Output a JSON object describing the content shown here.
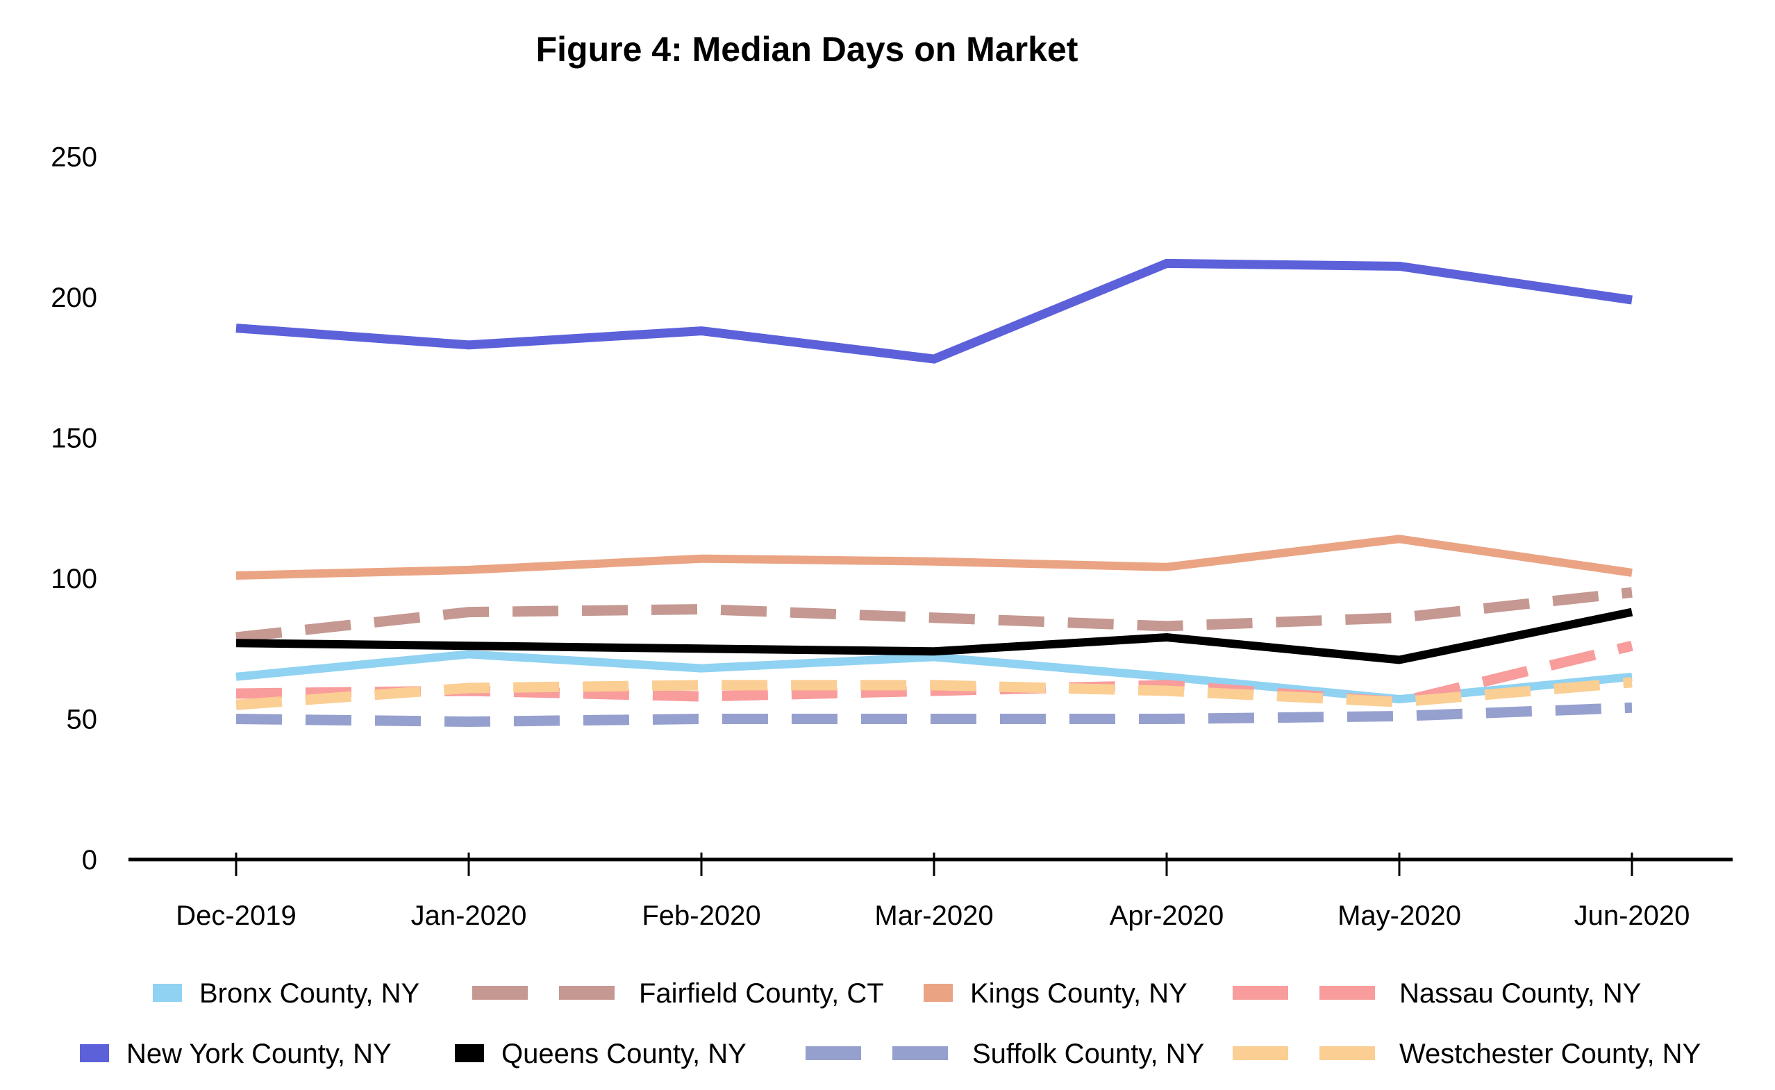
{
  "chart_data": {
    "type": "line",
    "title": "Figure 4: Median Days on Market",
    "xlabel": "",
    "ylabel": "",
    "x": [
      "Dec-2019",
      "Jan-2020",
      "Feb-2020",
      "Mar-2020",
      "Apr-2020",
      "May-2020",
      "Jun-2020"
    ],
    "ylim": [
      0,
      250
    ],
    "yticks": [
      0,
      50,
      100,
      150,
      200,
      250
    ],
    "grid": false,
    "legend_position": "bottom",
    "series": [
      {
        "name": "Bronx County, NY",
        "color": "#8FD2F2",
        "style": "solid",
        "values": [
          65,
          73,
          68,
          72,
          65,
          57,
          65
        ]
      },
      {
        "name": "Fairfield County, CT",
        "color": "#C59892",
        "style": "dashed",
        "values": [
          79,
          88,
          89,
          86,
          83,
          86,
          95
        ]
      },
      {
        "name": "Kings County, NY",
        "color": "#EAA483",
        "style": "solid",
        "values": [
          101,
          103,
          107,
          106,
          104,
          114,
          102
        ]
      },
      {
        "name": "Nassau County, NY",
        "color": "#F89C9C",
        "style": "dashed",
        "values": [
          59,
          60,
          58,
          60,
          62,
          56,
          76
        ]
      },
      {
        "name": "New York County, NY",
        "color": "#5C61DA",
        "style": "solid",
        "values": [
          189,
          183,
          188,
          178,
          212,
          211,
          199
        ]
      },
      {
        "name": "Queens County, NY",
        "color": "#000000",
        "style": "solid",
        "values": [
          77,
          76,
          75,
          74,
          79,
          71,
          88
        ]
      },
      {
        "name": "Suffolk County, NY",
        "color": "#96A0CE",
        "style": "dashed",
        "values": [
          50,
          49,
          50,
          50,
          50,
          51,
          54
        ]
      },
      {
        "name": "Westchester County, NY",
        "color": "#FBCE93",
        "style": "dashed",
        "values": [
          55,
          61,
          62,
          62,
          60,
          56,
          63
        ]
      }
    ]
  }
}
